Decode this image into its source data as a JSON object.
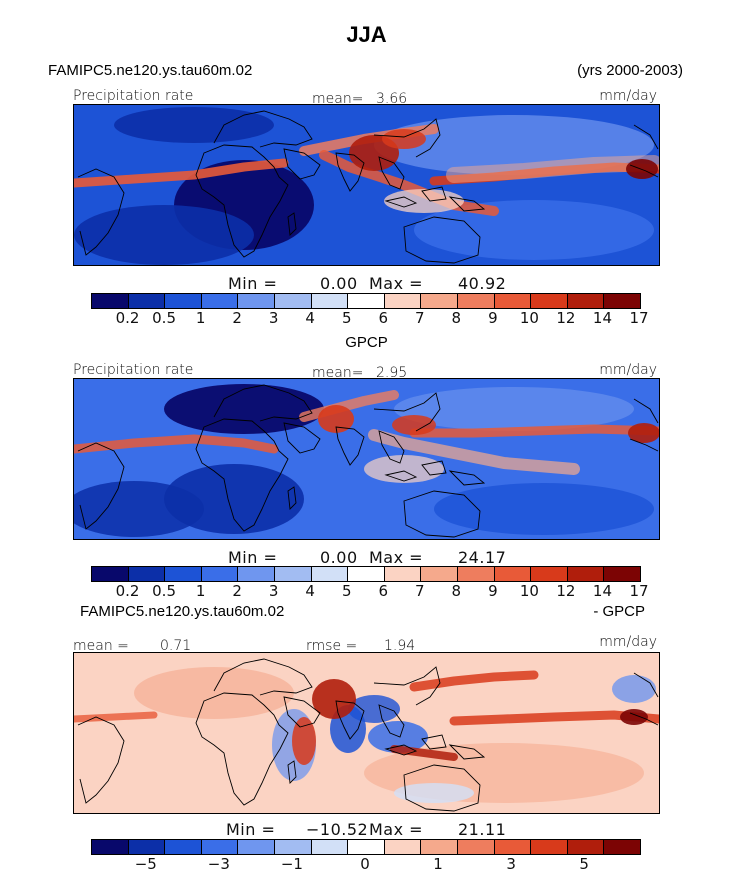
{
  "header": {
    "title": "JJA",
    "case_name": "FAMIPC5.ne120.ys.tau60m.02",
    "years": "(yrs 2000-2003)"
  },
  "panel1": {
    "label_left": "Precipitation rate",
    "mean_label": "mean=",
    "mean_value": "3.66",
    "units": "mm/day",
    "min_label": "Min =",
    "min_value": "0.00",
    "max_label": "Max =",
    "max_value": "40.92"
  },
  "panel2_header": {
    "title": "GPCP"
  },
  "panel2": {
    "label_left": "Precipitation rate",
    "mean_label": "mean=",
    "mean_value": "2.95",
    "units": "mm/day",
    "min_label": "Min =",
    "min_value": "0.00",
    "max_label": "Max =",
    "max_value": "24.17"
  },
  "panel3_header": {
    "left": "FAMIPC5.ne120.ys.tau60m.02",
    "right": "- GPCP"
  },
  "panel3": {
    "mean_label": "mean =",
    "mean_value": "0.71",
    "rmse_label": "rmse =",
    "rmse_value": "1.94",
    "units": "mm/day",
    "min_label": "Min =",
    "min_value": "−10.52",
    "max_label": "Max =",
    "max_value": "21.11"
  },
  "chart_data": [
    {
      "type": "heatmap",
      "title": "FAMIPC5.ne120.ys.tau60m.02",
      "subtitle": "(yrs 2000-2003)",
      "field": "Precipitation rate",
      "units": "mm/day",
      "mean": 3.66,
      "min": 0.0,
      "max": 40.92,
      "colorbar_levels": [
        "0.2",
        "0.5",
        "1",
        "2",
        "3",
        "4",
        "5",
        "6",
        "7",
        "8",
        "9",
        "10",
        "12",
        "14",
        "17"
      ],
      "colors": [
        "#08086b",
        "#0c2fa8",
        "#1d53d6",
        "#3a6ee8",
        "#6f96ef",
        "#a2bcf2",
        "#d2e0f7",
        "#ffffff",
        "#fbd3c3",
        "#f5a98c",
        "#ee7d5e",
        "#e85a38",
        "#d83a1b",
        "#b01e0c",
        "#7c0404"
      ]
    },
    {
      "type": "heatmap",
      "title": "GPCP",
      "field": "Precipitation rate",
      "units": "mm/day",
      "mean": 2.95,
      "min": 0.0,
      "max": 24.17,
      "colorbar_levels": [
        "0.2",
        "0.5",
        "1",
        "2",
        "3",
        "4",
        "5",
        "6",
        "7",
        "8",
        "9",
        "10",
        "12",
        "14",
        "17"
      ],
      "colors": [
        "#08086b",
        "#0c2fa8",
        "#1d53d6",
        "#3a6ee8",
        "#6f96ef",
        "#a2bcf2",
        "#d2e0f7",
        "#ffffff",
        "#fbd3c3",
        "#f5a98c",
        "#ee7d5e",
        "#e85a38",
        "#d83a1b",
        "#b01e0c",
        "#7c0404"
      ]
    },
    {
      "type": "heatmap",
      "title": "FAMIPC5.ne120.ys.tau60m.02 - GPCP",
      "units": "mm/day",
      "mean": 0.71,
      "rmse": 1.94,
      "min": -10.52,
      "max": 21.11,
      "colorbar_labels": [
        "−5",
        "−3",
        "−1",
        "0",
        "1",
        "3",
        "5"
      ],
      "colors": [
        "#08086b",
        "#0c2fa8",
        "#1d53d6",
        "#3a6ee8",
        "#6f96ef",
        "#a2bcf2",
        "#d2e0f7",
        "#ffffff",
        "#fbd3c3",
        "#f5a98c",
        "#ee7d5e",
        "#e85a38",
        "#d83a1b",
        "#b01e0c",
        "#7c0404"
      ]
    }
  ]
}
